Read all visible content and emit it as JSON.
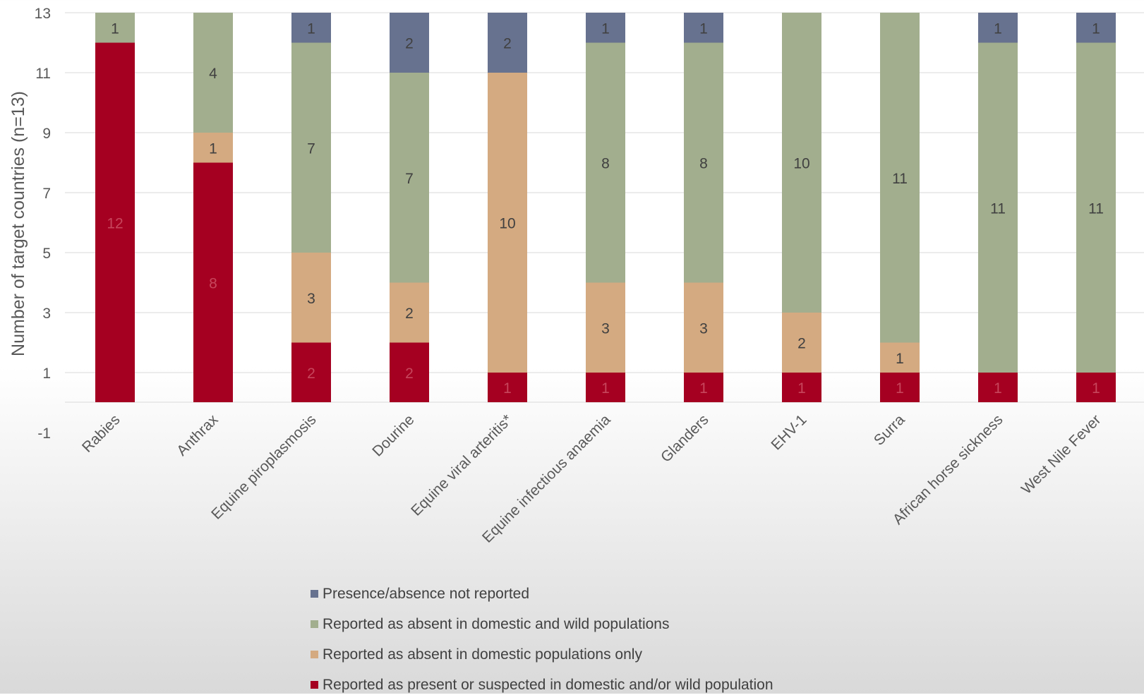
{
  "chart_data": {
    "type": "bar",
    "stacked": true,
    "ylabel": "Number of target countries (n=13)",
    "xlabel": "",
    "ylim": [
      -1,
      13
    ],
    "yticks": [
      -1,
      1,
      3,
      5,
      7,
      9,
      11,
      13
    ],
    "grid": true,
    "legend_position": "bottom",
    "categories": [
      "Rabies",
      "Anthrax",
      "Equine piroplasmosis",
      "Dourine",
      "Equine viral arteritis*",
      "Equine infectious anaemia",
      "Glanders",
      "EHV-1",
      "Surra",
      "African horse sickness",
      "West Nile Fever"
    ],
    "series": [
      {
        "name": "Reported as present or suspected in domestic and/or wild population",
        "color": "#a50021",
        "label_color": "#c7465c",
        "values": [
          12,
          8,
          2,
          2,
          1,
          1,
          1,
          1,
          1,
          1,
          1
        ]
      },
      {
        "name": "Reported as absent in domestic populations only",
        "color": "#d4aa81",
        "label_color": "#404040",
        "values": [
          0,
          1,
          3,
          2,
          10,
          3,
          3,
          2,
          1,
          0,
          0
        ]
      },
      {
        "name": "Reported as absent in domestic and wild populations",
        "color": "#a2ae8e",
        "label_color": "#404040",
        "values": [
          1,
          4,
          7,
          7,
          0,
          8,
          8,
          10,
          11,
          11,
          11
        ]
      },
      {
        "name": "Presence/absence not reported",
        "color": "#67728f",
        "label_color": "#404040",
        "values": [
          0,
          0,
          1,
          2,
          2,
          1,
          1,
          0,
          0,
          1,
          1
        ]
      }
    ],
    "legend_order": [
      3,
      2,
      1,
      0
    ]
  }
}
